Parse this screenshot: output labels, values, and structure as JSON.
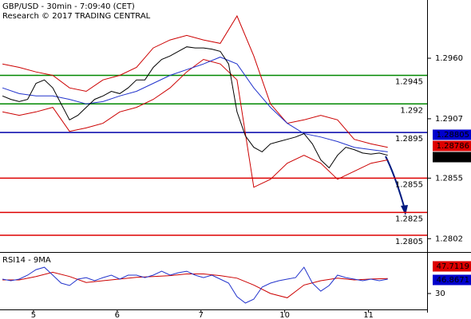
{
  "chart_data": [
    {
      "type": "line",
      "title": "GBP/USD - 30min - 7:09:40 (CET)",
      "subtitle": "Research © 2017 TRADING CENTRAL",
      "xlim": [
        -0.3,
        50.7
      ],
      "ylim": [
        1.2791,
        1.3011
      ],
      "yticks": [
        {
          "value": 1.296,
          "label": "1.2960"
        },
        1.2907,
        1.2855,
        1.2802
      ],
      "series": [
        {
          "color": "#cc0000",
          "x": [
            0,
            2,
            4,
            6,
            8,
            10,
            12,
            14,
            16,
            18,
            20,
            22,
            24,
            26,
            28,
            30,
            32,
            34,
            36,
            38,
            40,
            42,
            44,
            46
          ],
          "values": [
            1.2955,
            1.2952,
            1.2948,
            1.2945,
            1.2934,
            1.2931,
            1.2941,
            1.2945,
            1.2952,
            1.2969,
            1.2976,
            1.298,
            1.2976,
            1.2973,
            1.2997,
            1.2962,
            1.292,
            1.2903,
            1.2906,
            1.291,
            1.2906,
            1.2889,
            1.2885,
            1.2882
          ]
        },
        {
          "color": "#cc0000",
          "x": [
            0,
            2,
            4,
            6,
            8,
            10,
            12,
            14,
            16,
            18,
            20,
            22,
            24,
            26,
            28,
            30,
            32,
            34,
            36,
            38,
            40,
            42,
            44,
            46
          ],
          "values": [
            1.2913,
            1.291,
            1.2913,
            1.2917,
            1.2896,
            1.2899,
            1.2903,
            1.2913,
            1.2917,
            1.2924,
            1.2934,
            1.2948,
            1.2959,
            1.2955,
            1.2941,
            1.2847,
            1.2854,
            1.2868,
            1.2875,
            1.2868,
            1.2854,
            1.2861,
            1.2868,
            1.2871
          ]
        },
        {
          "color": "#2233cc",
          "x": [
            0,
            2,
            4,
            6,
            8,
            10,
            12,
            14,
            16,
            18,
            20,
            22,
            24,
            26,
            28,
            30,
            32,
            34,
            36,
            38,
            40,
            42,
            44,
            46
          ],
          "values": [
            1.2934,
            1.2929,
            1.2927,
            1.2927,
            1.2924,
            1.292,
            1.2922,
            1.2927,
            1.2931,
            1.2938,
            1.2945,
            1.295,
            1.2955,
            1.2961,
            1.2955,
            1.2934,
            1.2917,
            1.2903,
            1.2894,
            1.2891,
            1.2887,
            1.2882,
            1.288,
            1.2878
          ]
        },
        {
          "color": "#000000",
          "x": [
            0,
            1,
            2,
            3,
            4,
            5,
            6,
            7,
            8,
            9,
            10,
            11,
            12,
            13,
            14,
            15,
            16,
            17,
            18,
            19,
            20,
            21,
            22,
            23,
            24,
            25,
            26,
            27,
            28,
            29,
            30,
            31,
            32,
            33,
            34,
            35,
            36,
            37,
            38,
            39,
            40,
            41,
            42,
            43,
            44,
            45,
            46
          ],
          "values": [
            1.2927,
            1.2924,
            1.2922,
            1.2924,
            1.2938,
            1.2941,
            1.2934,
            1.292,
            1.2906,
            1.291,
            1.2917,
            1.2924,
            1.2927,
            1.2931,
            1.2929,
            1.2934,
            1.2941,
            1.2941,
            1.2952,
            1.2959,
            1.2962,
            1.2966,
            1.297,
            1.2969,
            1.2969,
            1.2968,
            1.2966,
            1.2955,
            1.2913,
            1.2892,
            1.2882,
            1.2878,
            1.2885,
            1.2887,
            1.2889,
            1.2891,
            1.2894,
            1.2885,
            1.2871,
            1.2864,
            1.2875,
            1.2882,
            1.288,
            1.2877,
            1.2876,
            1.2877,
            1.2875
          ]
        }
      ],
      "levels": [
        {
          "value": 1.2945,
          "color": "#008800"
        },
        {
          "value": 1.292,
          "color": "#008800"
        },
        {
          "value": 1.2895,
          "color": "#0000aa"
        },
        {
          "value": 1.2855,
          "color": "#dd0000"
        },
        {
          "value": 1.2825,
          "color": "#dd0000"
        },
        {
          "value": 1.2805,
          "color": "#dd0000"
        }
      ],
      "tags": [
        {
          "value": 1.28805,
          "color": "#0000cc"
        },
        {
          "value": 1.28786,
          "color": "#dd0000"
        },
        {
          "value": 1.2877,
          "color": "#000000"
        }
      ]
    },
    {
      "type": "line",
      "title": "RSI14 - 9MA",
      "xlim": [
        -0.3,
        50.7
      ],
      "ylim": [
        11.3,
        76.9
      ],
      "yticks": [
        30
      ],
      "xticks": [
        {
          "value": 3.7,
          "label": "5"
        },
        {
          "value": 13.7,
          "label": "6"
        },
        {
          "value": 23.7,
          "label": "7"
        },
        {
          "value": 33.7,
          "label": "10"
        },
        {
          "value": 43.7,
          "label": "11"
        }
      ],
      "series": [
        {
          "color": "#cc0000",
          "x": [
            0,
            2,
            4,
            6,
            8,
            10,
            12,
            14,
            16,
            18,
            20,
            22,
            24,
            26,
            28,
            30,
            32,
            34,
            36,
            38,
            40,
            42,
            44,
            46
          ],
          "values": [
            46,
            46,
            50,
            55,
            50,
            43,
            45,
            47,
            49,
            50,
            51,
            53,
            53,
            51,
            48,
            40,
            30,
            25,
            40,
            45,
            48,
            46,
            47,
            47.7
          ]
        },
        {
          "color": "#2233cc",
          "x": [
            0,
            1,
            2,
            3,
            4,
            5,
            6,
            7,
            8,
            9,
            10,
            11,
            12,
            13,
            14,
            15,
            16,
            17,
            18,
            19,
            20,
            21,
            22,
            23,
            24,
            25,
            26,
            27,
            28,
            29,
            30,
            31,
            32,
            33,
            34,
            35,
            36,
            37,
            38,
            39,
            40,
            41,
            42,
            43,
            44,
            45,
            46
          ],
          "values": [
            46.9,
            45.0,
            46.9,
            51.6,
            58.1,
            60.9,
            51.6,
            42.2,
            39.4,
            46.9,
            48.7,
            45.0,
            48.7,
            51.6,
            46.9,
            51.6,
            51.6,
            48.7,
            51.6,
            56.2,
            51.6,
            54.4,
            56.2,
            51.6,
            48.7,
            51.6,
            46.9,
            42.2,
            26.3,
            18.8,
            23.4,
            37.5,
            42.2,
            45.0,
            46.9,
            48.7,
            60.9,
            42.2,
            32.8,
            39.4,
            51.6,
            48.7,
            46.9,
            45.0,
            46.9,
            45.0,
            46.9
          ]
        }
      ],
      "tags": [
        {
          "value": 47.7119,
          "color": "#dd0000"
        },
        {
          "value": 46.8671,
          "color": "#0000cc"
        }
      ]
    }
  ]
}
